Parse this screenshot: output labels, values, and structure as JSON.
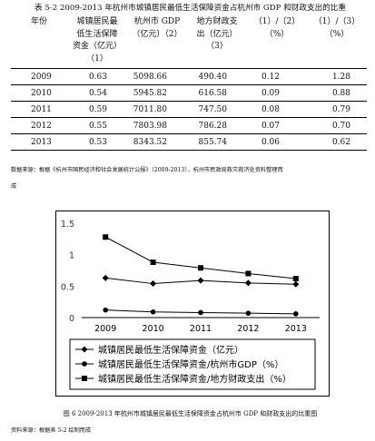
{
  "table_caption": "表 5-2  2009-2013 年杭州市城镇居民最低生活保障资金占杭州市 GDP 和财政支出的比重",
  "table": {
    "headers": [
      [
        "年份"
      ],
      [
        "城镇居民最",
        "低生活保障",
        "资金（亿元）",
        "（1）"
      ],
      [
        "杭州市 GDP",
        "（亿元）（2）"
      ],
      [
        "地方财政支",
        "出（亿元）",
        "（3）"
      ],
      [
        "（1）/（2）",
        "（%）"
      ],
      [
        "（1）/（3）",
        "（%）"
      ]
    ],
    "rows": [
      [
        "2009",
        "0.63",
        "5098.66",
        "490.40",
        "0.12",
        "1.28"
      ],
      [
        "2010",
        "0.54",
        "5945.82",
        "616.58",
        "0.09",
        "0.88"
      ],
      [
        "2011",
        "0.59",
        "7011.80",
        "747.50",
        "0.08",
        "0.79"
      ],
      [
        "2012",
        "0.55",
        "7803.98",
        "786.28",
        "0.07",
        "0.70"
      ],
      [
        "2013",
        "0.53",
        "8343.52",
        "855.74",
        "0.06",
        "0.62"
      ]
    ]
  },
  "table_source_line1": "数据来源：根据《杭州市国民经济和社会发展统计公报》（2009-2013），杭州市民政局救灾救济处资料整理而",
  "table_source_line2": "成",
  "chart_data": {
    "type": "line",
    "x": [
      "2009",
      "2010",
      "2011",
      "2012",
      "2013"
    ],
    "ylim": [
      0,
      1.5
    ],
    "yticks": [
      "0",
      "0.5",
      "1",
      "1.5"
    ],
    "grid": false,
    "legend_position": "bottom",
    "series": [
      {
        "name": "城镇居民最低生活保障资金（亿元）",
        "marker": "diamond",
        "values": [
          0.63,
          0.54,
          0.59,
          0.55,
          0.53
        ]
      },
      {
        "name": "城镇居民最低生活保障资金/杭州市GDP（%）",
        "marker": "circle",
        "values": [
          0.12,
          0.09,
          0.08,
          0.07,
          0.06
        ]
      },
      {
        "name": "城镇居民最低生活保障资金/地方财政支出（%）",
        "marker": "square",
        "values": [
          1.28,
          0.88,
          0.79,
          0.7,
          0.62
        ]
      }
    ],
    "line_color": "#000000"
  },
  "figure_caption": "图 6  2009-2013 年杭州市城镇居民最低生活保障资金占杭州市 GDP 和财政支出的比重图",
  "figure_source": "资料来源：根据表 5-2 绘制而成"
}
